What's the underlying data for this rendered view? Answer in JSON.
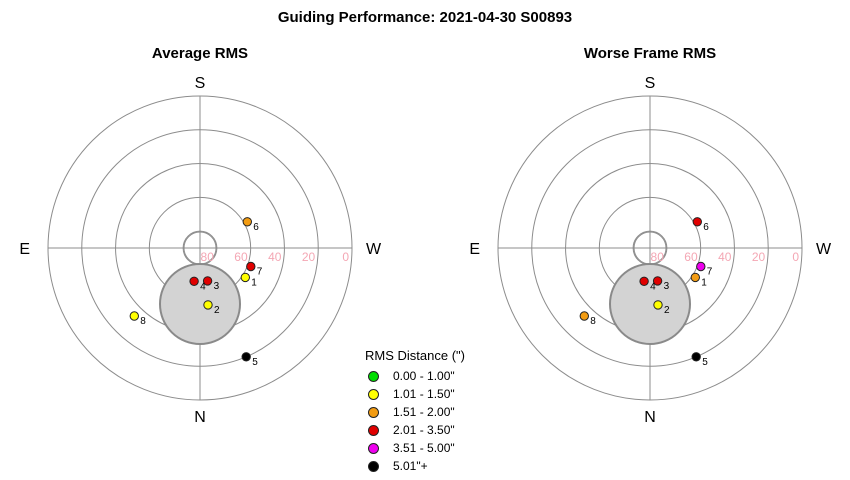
{
  "title": "Guiding Performance: 2021-04-30 S00893",
  "chart_data": [
    {
      "type": "scatter",
      "subtype": "polar-sky-plot",
      "title": "Average RMS",
      "directions": {
        "top": "S",
        "bottom": "N",
        "left": "E",
        "right": "W"
      },
      "radial_axis": {
        "label_direction": "W",
        "tick_labels": [
          "80",
          "60",
          "40",
          "20",
          "0"
        ],
        "rings_at": [
          80,
          60,
          40,
          20,
          0
        ],
        "label_color": "#f4a7b4"
      },
      "zenith_gap": "grey circle near N (no data zone)",
      "points": [
        {
          "label": "1",
          "altitude": 58,
          "azimuth_deg": 237,
          "rms_class": "1.01 - 1.50\"",
          "color": "#ffff00"
        },
        {
          "label": "2",
          "altitude": 56,
          "azimuth_deg": 188,
          "rms_class": "1.01 - 1.50\"",
          "color": "#ffff00"
        },
        {
          "label": "3",
          "altitude": 70,
          "azimuth_deg": 193,
          "rms_class": "2.01 - 3.50\"",
          "color": "#e00000"
        },
        {
          "label": "4",
          "altitude": 70,
          "azimuth_deg": 170,
          "rms_class": "2.01 - 3.50\"",
          "color": "#e00000"
        },
        {
          "label": "5",
          "altitude": 20,
          "azimuth_deg": 203,
          "rms_class": "5.01\"+",
          "color": "#000000"
        },
        {
          "label": "6",
          "altitude": 58,
          "azimuth_deg": 299,
          "rms_class": "1.51 - 2.00\"",
          "color": "#f39c12"
        },
        {
          "label": "7",
          "altitude": 58,
          "azimuth_deg": 250,
          "rms_class": "2.01 - 3.50\"",
          "color": "#e00000"
        },
        {
          "label": "8",
          "altitude": 34,
          "azimuth_deg": 136,
          "rms_class": "1.01 - 1.50\"",
          "color": "#ffff00"
        }
      ]
    },
    {
      "type": "scatter",
      "subtype": "polar-sky-plot",
      "title": "Worse Frame RMS",
      "directions": {
        "top": "S",
        "bottom": "N",
        "left": "E",
        "right": "W"
      },
      "radial_axis": {
        "label_direction": "W",
        "tick_labels": [
          "80",
          "60",
          "40",
          "20",
          "0"
        ],
        "rings_at": [
          80,
          60,
          40,
          20,
          0
        ],
        "label_color": "#f4a7b4"
      },
      "zenith_gap": "grey circle near N (no data zone)",
      "points": [
        {
          "label": "1",
          "altitude": 58,
          "azimuth_deg": 237,
          "rms_class": "1.51 - 2.00\"",
          "color": "#f39c12"
        },
        {
          "label": "2",
          "altitude": 56,
          "azimuth_deg": 188,
          "rms_class": "1.01 - 1.50\"",
          "color": "#ffff00"
        },
        {
          "label": "3",
          "altitude": 70,
          "azimuth_deg": 193,
          "rms_class": "2.01 - 3.50\"",
          "color": "#e00000"
        },
        {
          "label": "4",
          "altitude": 70,
          "azimuth_deg": 170,
          "rms_class": "2.01 - 3.50\"",
          "color": "#e00000"
        },
        {
          "label": "5",
          "altitude": 20,
          "azimuth_deg": 203,
          "rms_class": "5.01\"+",
          "color": "#000000"
        },
        {
          "label": "6",
          "altitude": 58,
          "azimuth_deg": 299,
          "rms_class": "2.01 - 3.50\"",
          "color": "#e00000"
        },
        {
          "label": "7",
          "altitude": 58,
          "azimuth_deg": 250,
          "rms_class": "3.51 - 5.00\"",
          "color": "#ee00ee"
        },
        {
          "label": "8",
          "altitude": 34,
          "azimuth_deg": 136,
          "rms_class": "1.51 - 2.00\"",
          "color": "#f39c12"
        }
      ]
    }
  ],
  "legend": {
    "title": "RMS Distance (\")",
    "items": [
      {
        "label": "0.00 - 1.00\"",
        "color": "#00dd00"
      },
      {
        "label": "1.01 - 1.50\"",
        "color": "#ffff00"
      },
      {
        "label": "1.51 - 2.00\"",
        "color": "#f39c12"
      },
      {
        "label": "2.01 - 3.50\"",
        "color": "#e00000"
      },
      {
        "label": "3.51 - 5.00\"",
        "color": "#ee00ee"
      },
      {
        "label": "5.01\"+",
        "color": "#000000"
      }
    ]
  }
}
